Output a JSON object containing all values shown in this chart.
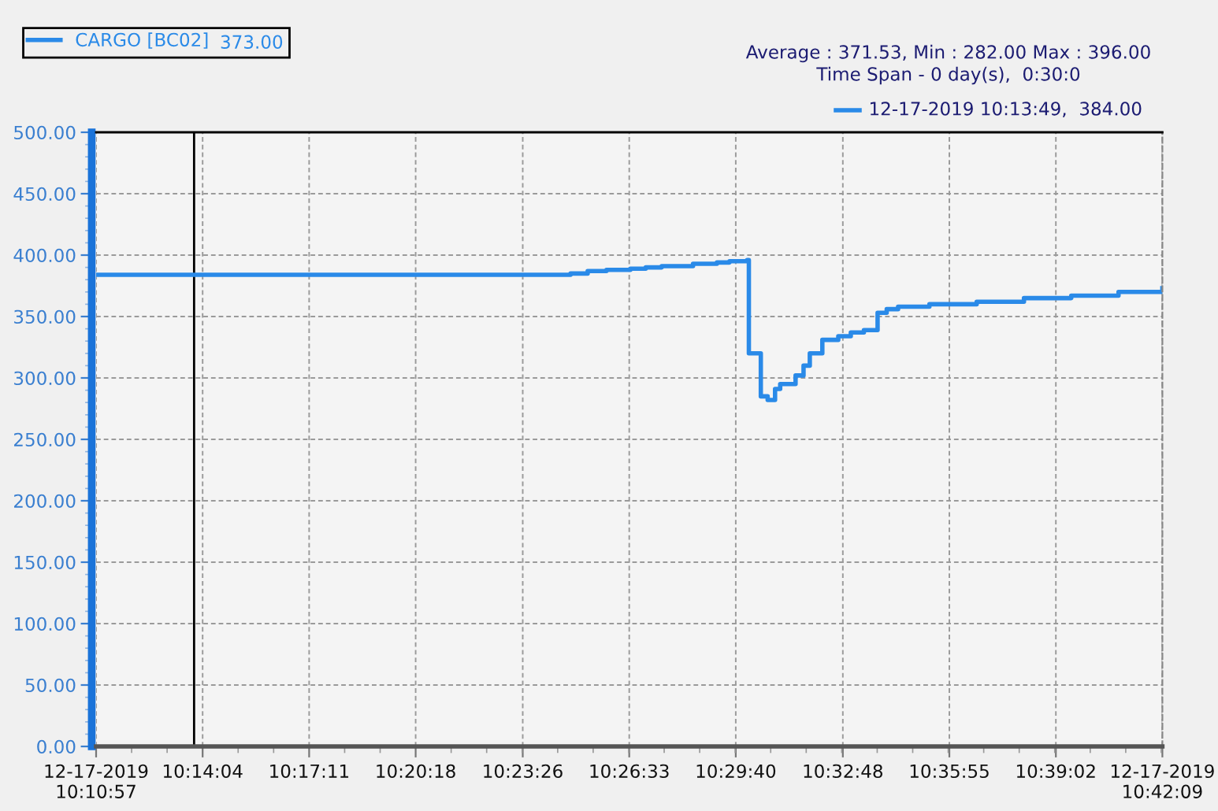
{
  "chart_data": {
    "type": "step",
    "x": [
      "2019-12-17T10:10:57",
      "2019-12-17T10:24:50",
      "2019-12-17T10:25:20",
      "2019-12-17T10:25:53",
      "2019-12-17T10:26:35",
      "2019-12-17T10:27:02",
      "2019-12-17T10:27:30",
      "2019-12-17T10:28:25",
      "2019-12-17T10:29:07",
      "2019-12-17T10:29:29",
      "2019-12-17T10:30:00",
      "2019-12-17T10:30:03",
      "2019-12-17T10:30:24",
      "2019-12-17T10:30:36",
      "2019-12-17T10:30:49",
      "2019-12-17T10:30:58",
      "2019-12-17T10:31:25",
      "2019-12-17T10:31:39",
      "2019-12-17T10:31:50",
      "2019-12-17T10:32:12",
      "2019-12-17T10:32:40",
      "2019-12-17T10:33:02",
      "2019-12-17T10:33:25",
      "2019-12-17T10:33:49",
      "2019-12-17T10:34:05",
      "2019-12-17T10:34:25",
      "2019-12-17T10:35:20",
      "2019-12-17T10:36:43",
      "2019-12-17T10:38:06",
      "2019-12-17T10:39:29",
      "2019-12-17T10:40:52",
      "2019-12-17T10:42:09"
    ],
    "series": [
      {
        "name": "CARGO [BC02]",
        "color": "#2a8ae8",
        "values": [
          384,
          385,
          387,
          388,
          389,
          390,
          391,
          393,
          394,
          395,
          396,
          320,
          285,
          282,
          291,
          295,
          302,
          310,
          320,
          331,
          334,
          337,
          339,
          353,
          356,
          358,
          360,
          362,
          365,
          367,
          370,
          373
        ]
      }
    ],
    "xlim": [
      "2019-12-17T10:10:57",
      "2019-12-17T10:42:09"
    ],
    "xticks": [
      {
        "value": "2019-12-17T10:10:57",
        "label": "12-17-2019\n10:10:57"
      },
      {
        "value": "2019-12-17T10:14:04",
        "label": "10:14:04"
      },
      {
        "value": "2019-12-17T10:17:11",
        "label": "10:17:11"
      },
      {
        "value": "2019-12-17T10:20:18",
        "label": "10:20:18"
      },
      {
        "value": "2019-12-17T10:23:26",
        "label": "10:23:26"
      },
      {
        "value": "2019-12-17T10:26:33",
        "label": "10:26:33"
      },
      {
        "value": "2019-12-17T10:29:40",
        "label": "10:29:40"
      },
      {
        "value": "2019-12-17T10:32:48",
        "label": "10:32:48"
      },
      {
        "value": "2019-12-17T10:35:55",
        "label": "10:35:55"
      },
      {
        "value": "2019-12-17T10:39:02",
        "label": "10:39:02"
      },
      {
        "value": "2019-12-17T10:42:09",
        "label": "12-17-2019\n10:42:09"
      }
    ],
    "ylim": [
      0,
      500
    ],
    "yticks": [
      {
        "value": 0,
        "label": "0.00"
      },
      {
        "value": 50,
        "label": "50.00"
      },
      {
        "value": 100,
        "label": "100.00"
      },
      {
        "value": 150,
        "label": "150.00"
      },
      {
        "value": 200,
        "label": "200.00"
      },
      {
        "value": 250,
        "label": "250.00"
      },
      {
        "value": 300,
        "label": "300.00"
      },
      {
        "value": 350,
        "label": "350.00"
      },
      {
        "value": 400,
        "label": "400.00"
      },
      {
        "value": 450,
        "label": "450.00"
      },
      {
        "value": 500,
        "label": "500.00"
      }
    ],
    "ref_lines": [
      {
        "axis": "x",
        "value": "2019-12-17T10:13:49",
        "color": "#000000"
      }
    ],
    "annotations": [
      "373.00",
      "Average : 371.53, Min : 282.00 Max : 396.00",
      "Time Span - 0 day(s),  0:30:0",
      "12-17-2019 10:13:49,  384.00"
    ],
    "grid": true,
    "legend": "top left"
  }
}
